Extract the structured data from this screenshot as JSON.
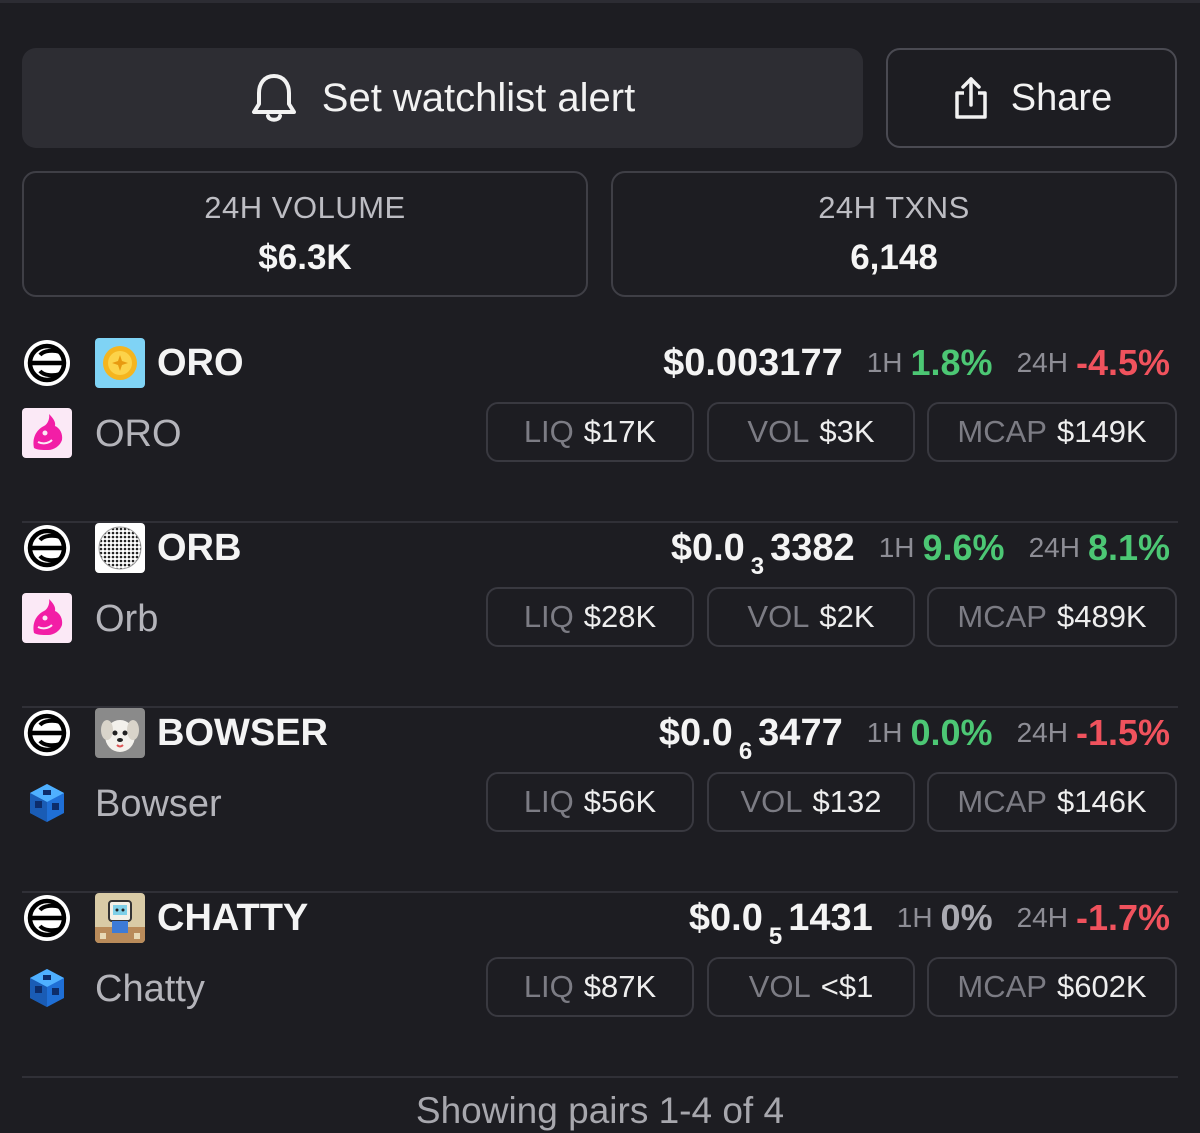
{
  "header": {
    "alert_label": "Set watchlist alert",
    "share_label": "Share"
  },
  "stats": {
    "volume": {
      "label": "24H VOLUME",
      "value": "$6.3K"
    },
    "txns": {
      "label": "24H TXNS",
      "value": "6,148"
    }
  },
  "colors": {
    "positive": "#4cc774",
    "negative": "#f0525d",
    "neutral": "#a9a9b0"
  },
  "pairs": [
    {
      "symbol": "ORO",
      "name": "ORO",
      "chain_icon": "worldchain-icon",
      "dex_icon": "uniswap-icon",
      "token_icon": "oro-coin-icon",
      "price": {
        "prefix": "$0.003177",
        "zeros": "",
        "digits": ""
      },
      "h1_label": "1H",
      "h1": "1.8%",
      "h1_trend": "positive",
      "h24_label": "24H",
      "h24": "-4.5%",
      "h24_trend": "negative",
      "liq_label": "LIQ",
      "liq": "$17K",
      "vol_label": "VOL",
      "vol": "$3K",
      "mcap_label": "MCAP",
      "mcap": "$149K"
    },
    {
      "symbol": "ORB",
      "name": "Orb",
      "chain_icon": "worldchain-icon",
      "dex_icon": "uniswap-icon",
      "token_icon": "orb-sphere-icon",
      "price": {
        "prefix": "$0.0",
        "zeros": "3",
        "digits": "3382"
      },
      "h1_label": "1H",
      "h1": "9.6%",
      "h1_trend": "positive",
      "h24_label": "24H",
      "h24": "8.1%",
      "h24_trend": "positive",
      "liq_label": "LIQ",
      "liq": "$28K",
      "vol_label": "VOL",
      "vol": "$2K",
      "mcap_label": "MCAP",
      "mcap": "$489K"
    },
    {
      "symbol": "BOWSER",
      "name": "Bowser",
      "chain_icon": "worldchain-icon",
      "dex_icon": "cube-dex-icon",
      "token_icon": "dog-avatar-icon",
      "price": {
        "prefix": "$0.0",
        "zeros": "6",
        "digits": "3477"
      },
      "h1_label": "1H",
      "h1": "0.0%",
      "h1_trend": "positive",
      "h24_label": "24H",
      "h24": "-1.5%",
      "h24_trend": "negative",
      "liq_label": "LIQ",
      "liq": "$56K",
      "vol_label": "VOL",
      "vol": "$132",
      "mcap_label": "MCAP",
      "mcap": "$146K"
    },
    {
      "symbol": "CHATTY",
      "name": "Chatty",
      "chain_icon": "worldchain-icon",
      "dex_icon": "cube-dex-icon",
      "token_icon": "robot-avatar-icon",
      "price": {
        "prefix": "$0.0",
        "zeros": "5",
        "digits": "1431"
      },
      "h1_label": "1H",
      "h1": "0%",
      "h1_trend": "neutral",
      "h24_label": "24H",
      "h24": "-1.7%",
      "h24_trend": "negative",
      "liq_label": "LIQ",
      "liq": "$87K",
      "vol_label": "VOL",
      "vol": "<$1",
      "mcap_label": "MCAP",
      "mcap": "$602K"
    }
  ],
  "footer": {
    "text": "Showing pairs 1-4 of 4"
  }
}
